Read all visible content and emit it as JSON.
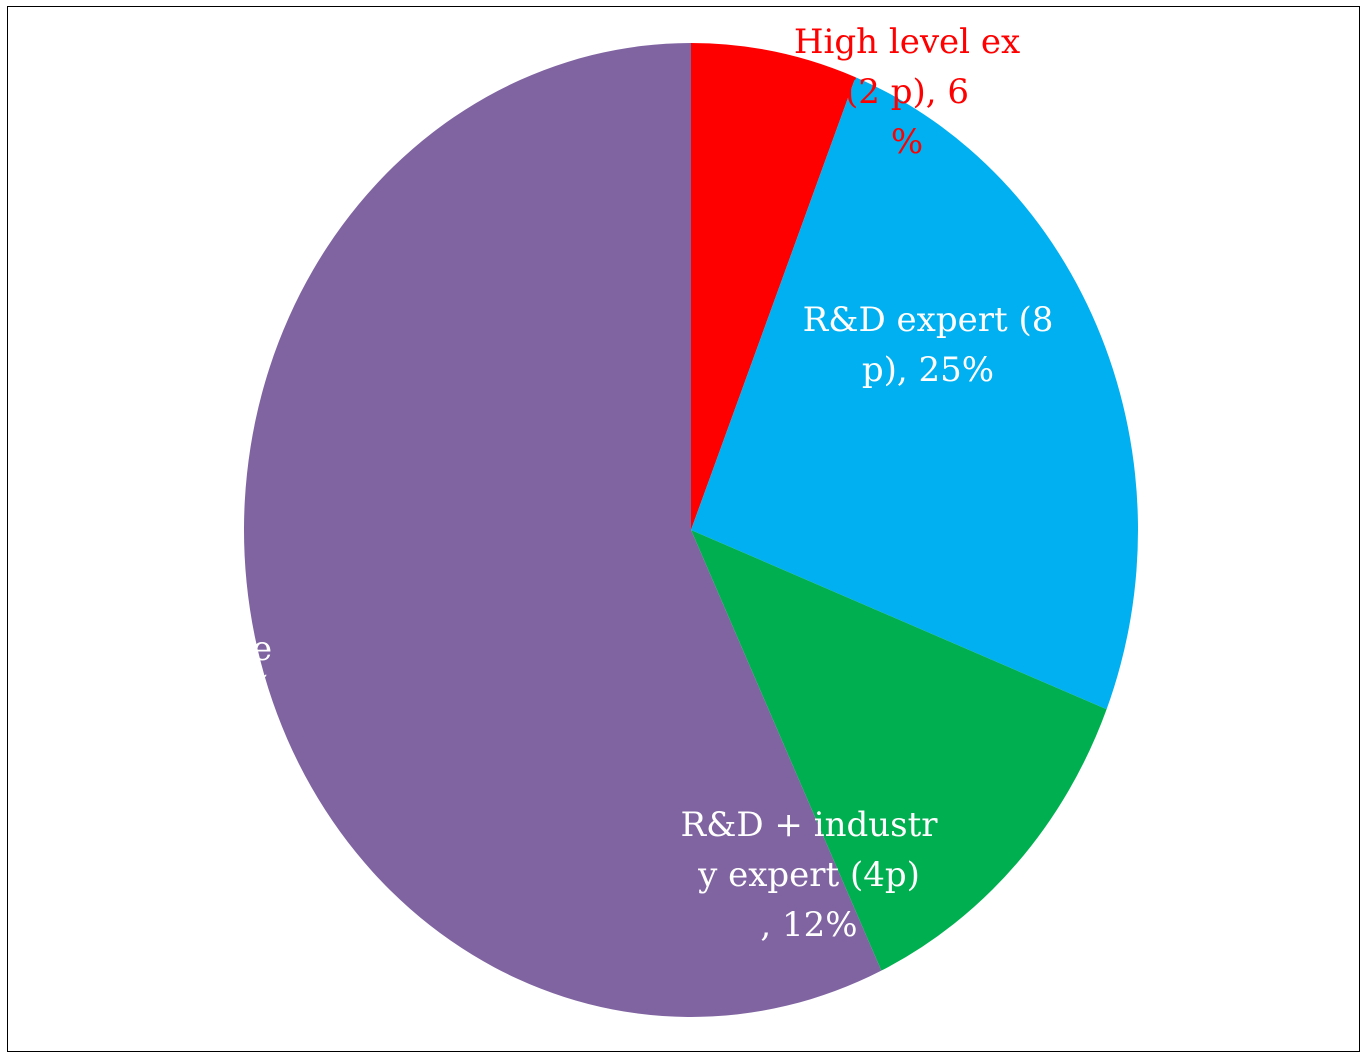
{
  "chart_data": {
    "type": "pie",
    "title": "",
    "slices": [
      {
        "name": "High level ex",
        "value": 6,
        "color": "#FF0000",
        "label_lines": [
          "High level ex",
          "(2 p), 6",
          "%"
        ],
        "label_color": "#FF0000"
      },
      {
        "name": "R&D expert",
        "value": 25,
        "color": "#00B0F0",
        "label_lines": [
          "R&D expert (8",
          "p), 25%"
        ],
        "label_color": "#FFFFFF"
      },
      {
        "name": "R&D + industry expert",
        "value": 12,
        "color": "#00B050",
        "label_lines": [
          "R&D + industr",
          "y expert (4p)",
          ", 12%"
        ],
        "label_color": "#FFFFFF"
      },
      {
        "name": "",
        "value": 57,
        "color": "#8064A2",
        "label_lines": [
          "e",
          "("
        ],
        "label_color": "#FFFFFF"
      }
    ],
    "legend": "none",
    "start_angle": "12 o'clock",
    "direction": "clockwise"
  }
}
